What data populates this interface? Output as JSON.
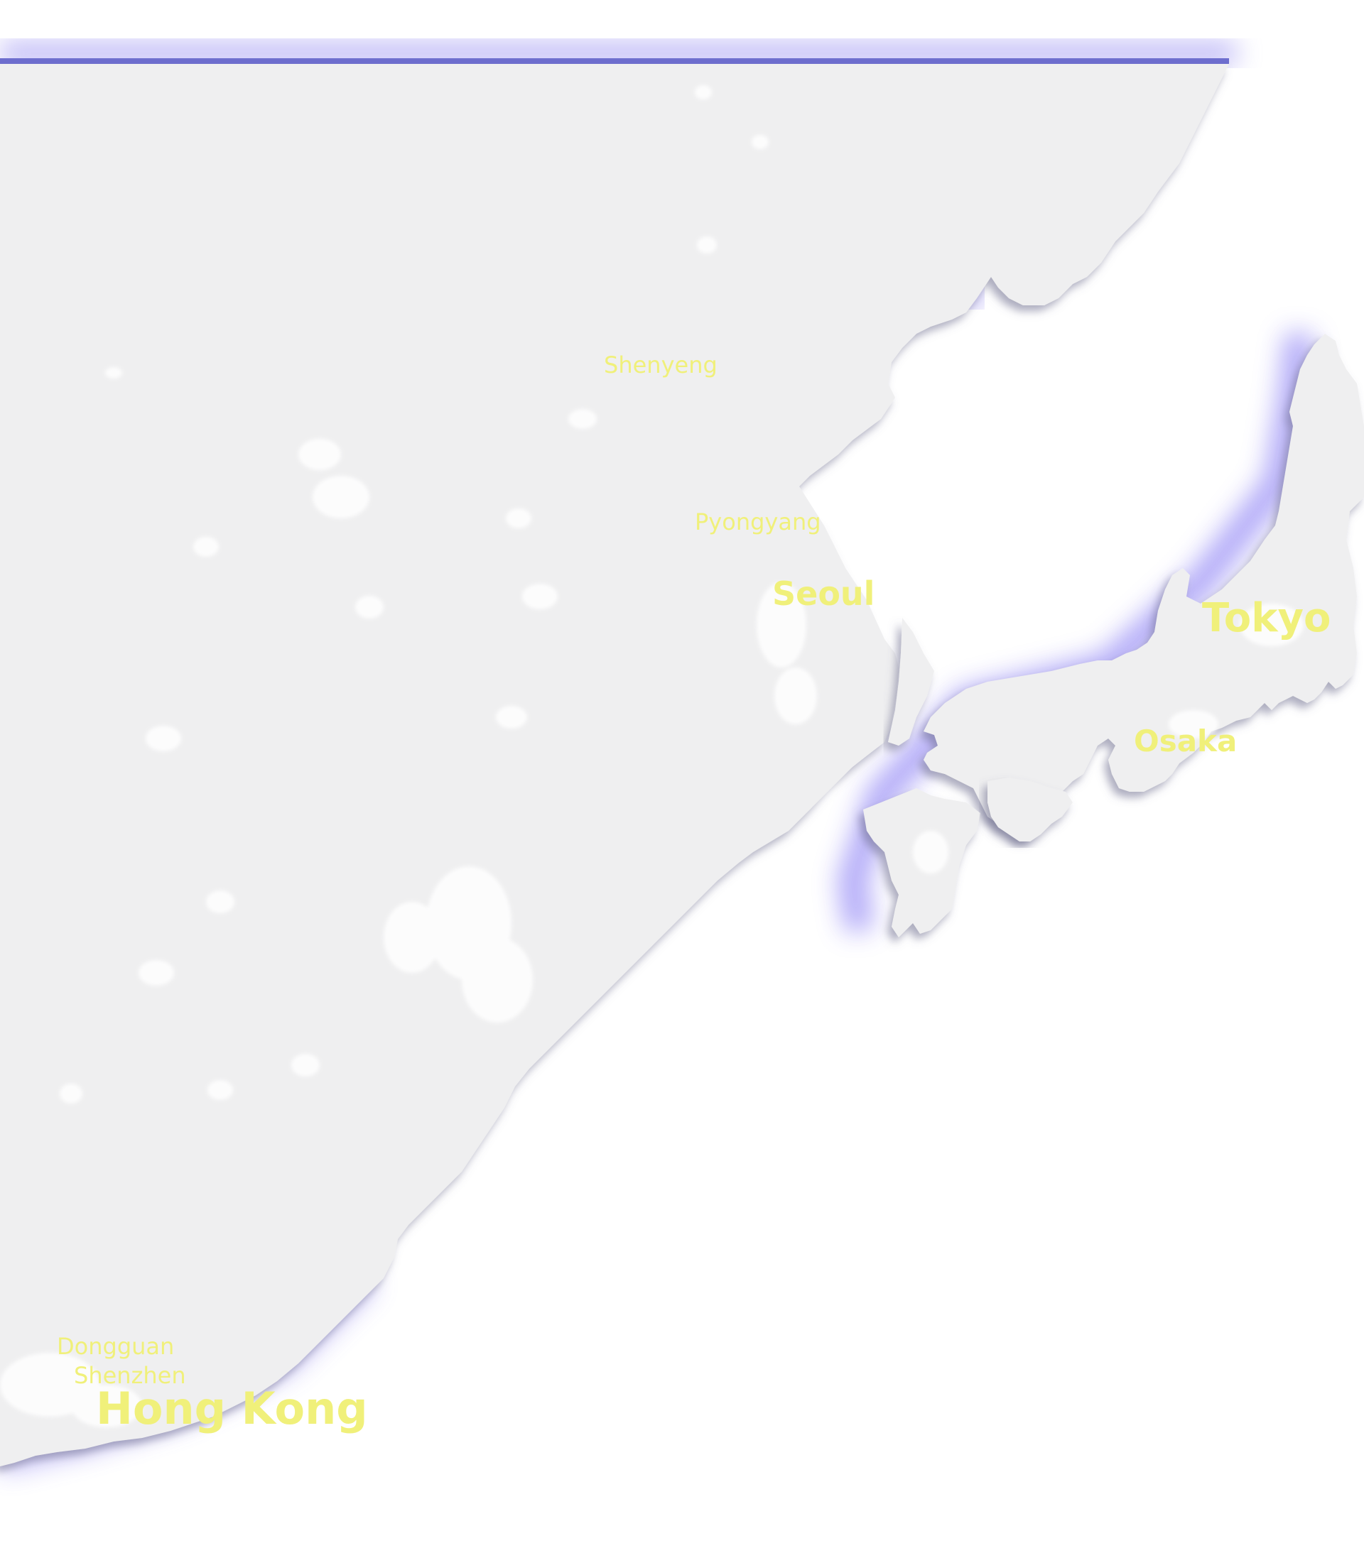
{
  "map": {
    "colors": {
      "land": "#efeff0",
      "coast_glow": "#6a5cf2",
      "label": "#f0f07a",
      "lights": "#ffffff",
      "top_band": "#6e6ecf"
    },
    "labels": {
      "shenyang": "Shenyeng",
      "pyongyang": "Pyongyang",
      "seoul": "Seoul",
      "tokyo": "Tokyo",
      "osaka": "Osaka",
      "dongguan": "Dongguan",
      "shenzhen": "Shenzhen",
      "hong_kong": "Hong Kong"
    }
  }
}
